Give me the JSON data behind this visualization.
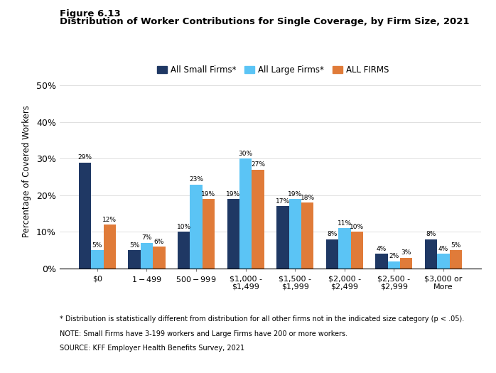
{
  "figure_label": "Figure 6.13",
  "title": "Distribution of Worker Contributions for Single Coverage, by Firm Size, 2021",
  "categories": [
    "$0",
    "$1 - $499",
    "$500 - $999",
    "$1,000 -\n$1,499",
    "$1,500 -\n$1,999",
    "$2,000 -\n$2,499",
    "$2,500 -\n$2,999",
    "$3,000 or\nMore"
  ],
  "series": {
    "All Small Firms*": [
      29,
      5,
      10,
      19,
      17,
      8,
      4,
      8
    ],
    "All Large Firms*": [
      5,
      7,
      23,
      30,
      19,
      11,
      2,
      4
    ],
    "ALL FIRMS": [
      12,
      6,
      19,
      27,
      18,
      10,
      3,
      5
    ]
  },
  "colors": {
    "All Small Firms*": "#1f3864",
    "All Large Firms*": "#5bc4f5",
    "ALL FIRMS": "#e07b39"
  },
  "ylabel": "Percentage of Covered Workers",
  "ylim": [
    0,
    53
  ],
  "yticks": [
    0,
    10,
    20,
    30,
    40,
    50
  ],
  "ytick_labels": [
    "0%",
    "10%",
    "20%",
    "30%",
    "40%",
    "50%"
  ],
  "footnote1": "* Distribution is statistically different from distribution for all other firms not in the indicated size category (p < .05).",
  "footnote2": "NOTE: Small Firms have 3-199 workers and Large Firms have 200 or more workers.",
  "footnote3": "SOURCE: KFF Employer Health Benefits Survey, 2021",
  "bar_width": 0.25,
  "legend_order": [
    "All Small Firms*",
    "All Large Firms*",
    "ALL FIRMS"
  ]
}
